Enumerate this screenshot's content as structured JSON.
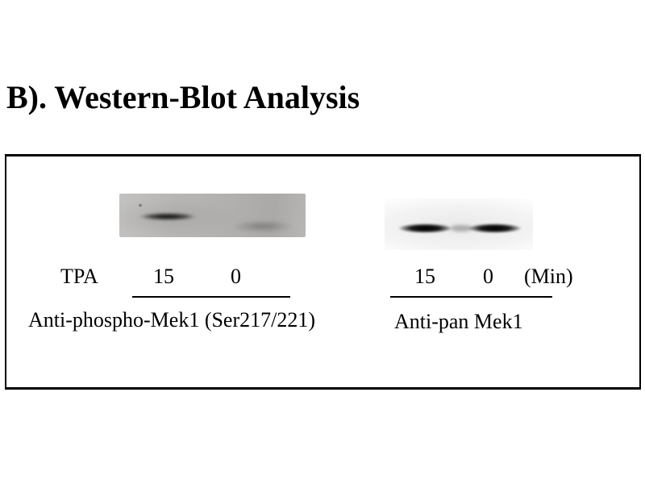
{
  "figure": {
    "title": "B). Western-Blot Analysis",
    "treatment_label": "TPA",
    "unit_label": "(Min)"
  },
  "left_blot": {
    "antibody": "Anti-phospho-Mek1 (Ser217/221)",
    "time_15": "15",
    "time_0": "0",
    "bands": [
      {
        "lane_time_min": "15",
        "intensity": "strong"
      },
      {
        "lane_time_min": "0",
        "intensity": "very faint"
      }
    ]
  },
  "right_blot": {
    "antibody": "Anti-pan Mek1",
    "time_15": "15",
    "time_0": "0",
    "bands": [
      {
        "lane_time_min": "15",
        "intensity": "strong"
      },
      {
        "lane_time_min": "0",
        "intensity": "strong"
      }
    ]
  },
  "colors": {
    "text": "#000000",
    "box_border": "#000000",
    "left_blot_background": "#b2b1af",
    "right_blot_background": "#f2f2f2",
    "band": "#0a0a0a"
  }
}
